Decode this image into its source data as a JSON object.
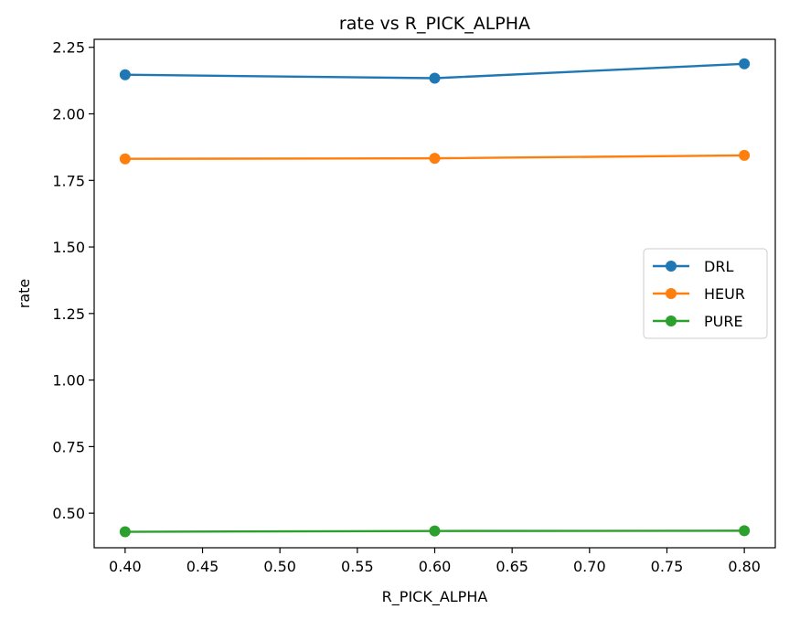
{
  "chart_data": {
    "type": "line",
    "title": "rate vs R_PICK_ALPHA",
    "xlabel": "R_PICK_ALPHA",
    "ylabel": "rate",
    "x": [
      0.4,
      0.6,
      0.8
    ],
    "xlim": [
      0.38,
      0.82
    ],
    "ylim": [
      0.37,
      2.28
    ],
    "xticks": [
      "0.40",
      "0.45",
      "0.50",
      "0.55",
      "0.60",
      "0.65",
      "0.70",
      "0.75",
      "0.80"
    ],
    "yticks": [
      "0.50",
      "0.75",
      "1.00",
      "1.25",
      "1.50",
      "1.75",
      "2.00",
      "2.25"
    ],
    "grid": false,
    "legend_position": "center-right",
    "series": [
      {
        "name": "DRL",
        "color": "#1f77b4",
        "values": [
          2.147,
          2.134,
          2.188
        ]
      },
      {
        "name": "HEUR",
        "color": "#ff7f0e",
        "values": [
          1.831,
          1.833,
          1.844
        ]
      },
      {
        "name": "PURE",
        "color": "#2ca02c",
        "values": [
          0.43,
          0.433,
          0.434
        ]
      }
    ]
  }
}
